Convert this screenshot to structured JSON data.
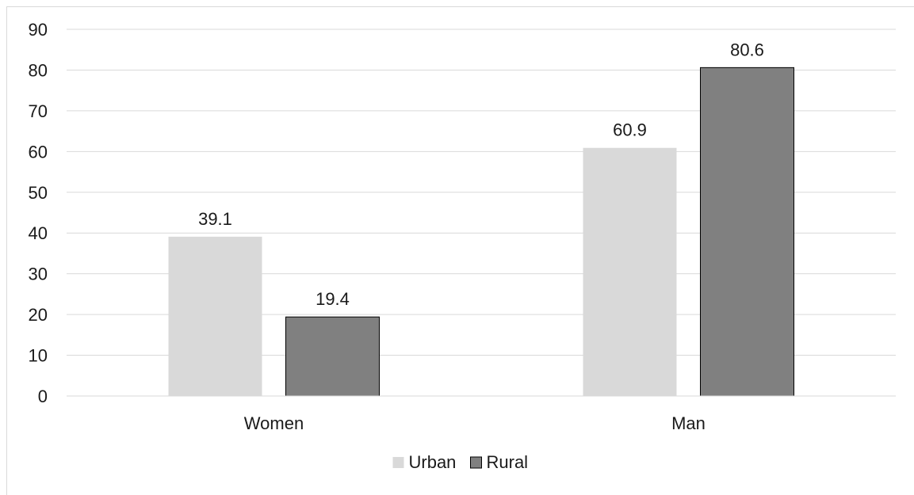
{
  "chart_data": {
    "type": "bar",
    "categories": [
      "Women",
      "Man"
    ],
    "series": [
      {
        "name": "Urban",
        "values": [
          39.1,
          60.9
        ],
        "color": "#d9d9d9",
        "border": "none"
      },
      {
        "name": "Rural",
        "values": [
          19.4,
          80.6
        ],
        "color": "#808080",
        "border": "#000000"
      }
    ],
    "data_labels": [
      [
        "39.1",
        "60.9"
      ],
      [
        "19.4",
        "80.6"
      ]
    ],
    "ylim": [
      0,
      90
    ],
    "yticks": [
      0,
      10,
      20,
      30,
      40,
      50,
      60,
      70,
      80,
      90
    ],
    "grid": true,
    "gridline_color": "#d9d9d9",
    "legend_placement": "bottom-center",
    "title": "",
    "xlabel": "",
    "ylabel": ""
  }
}
